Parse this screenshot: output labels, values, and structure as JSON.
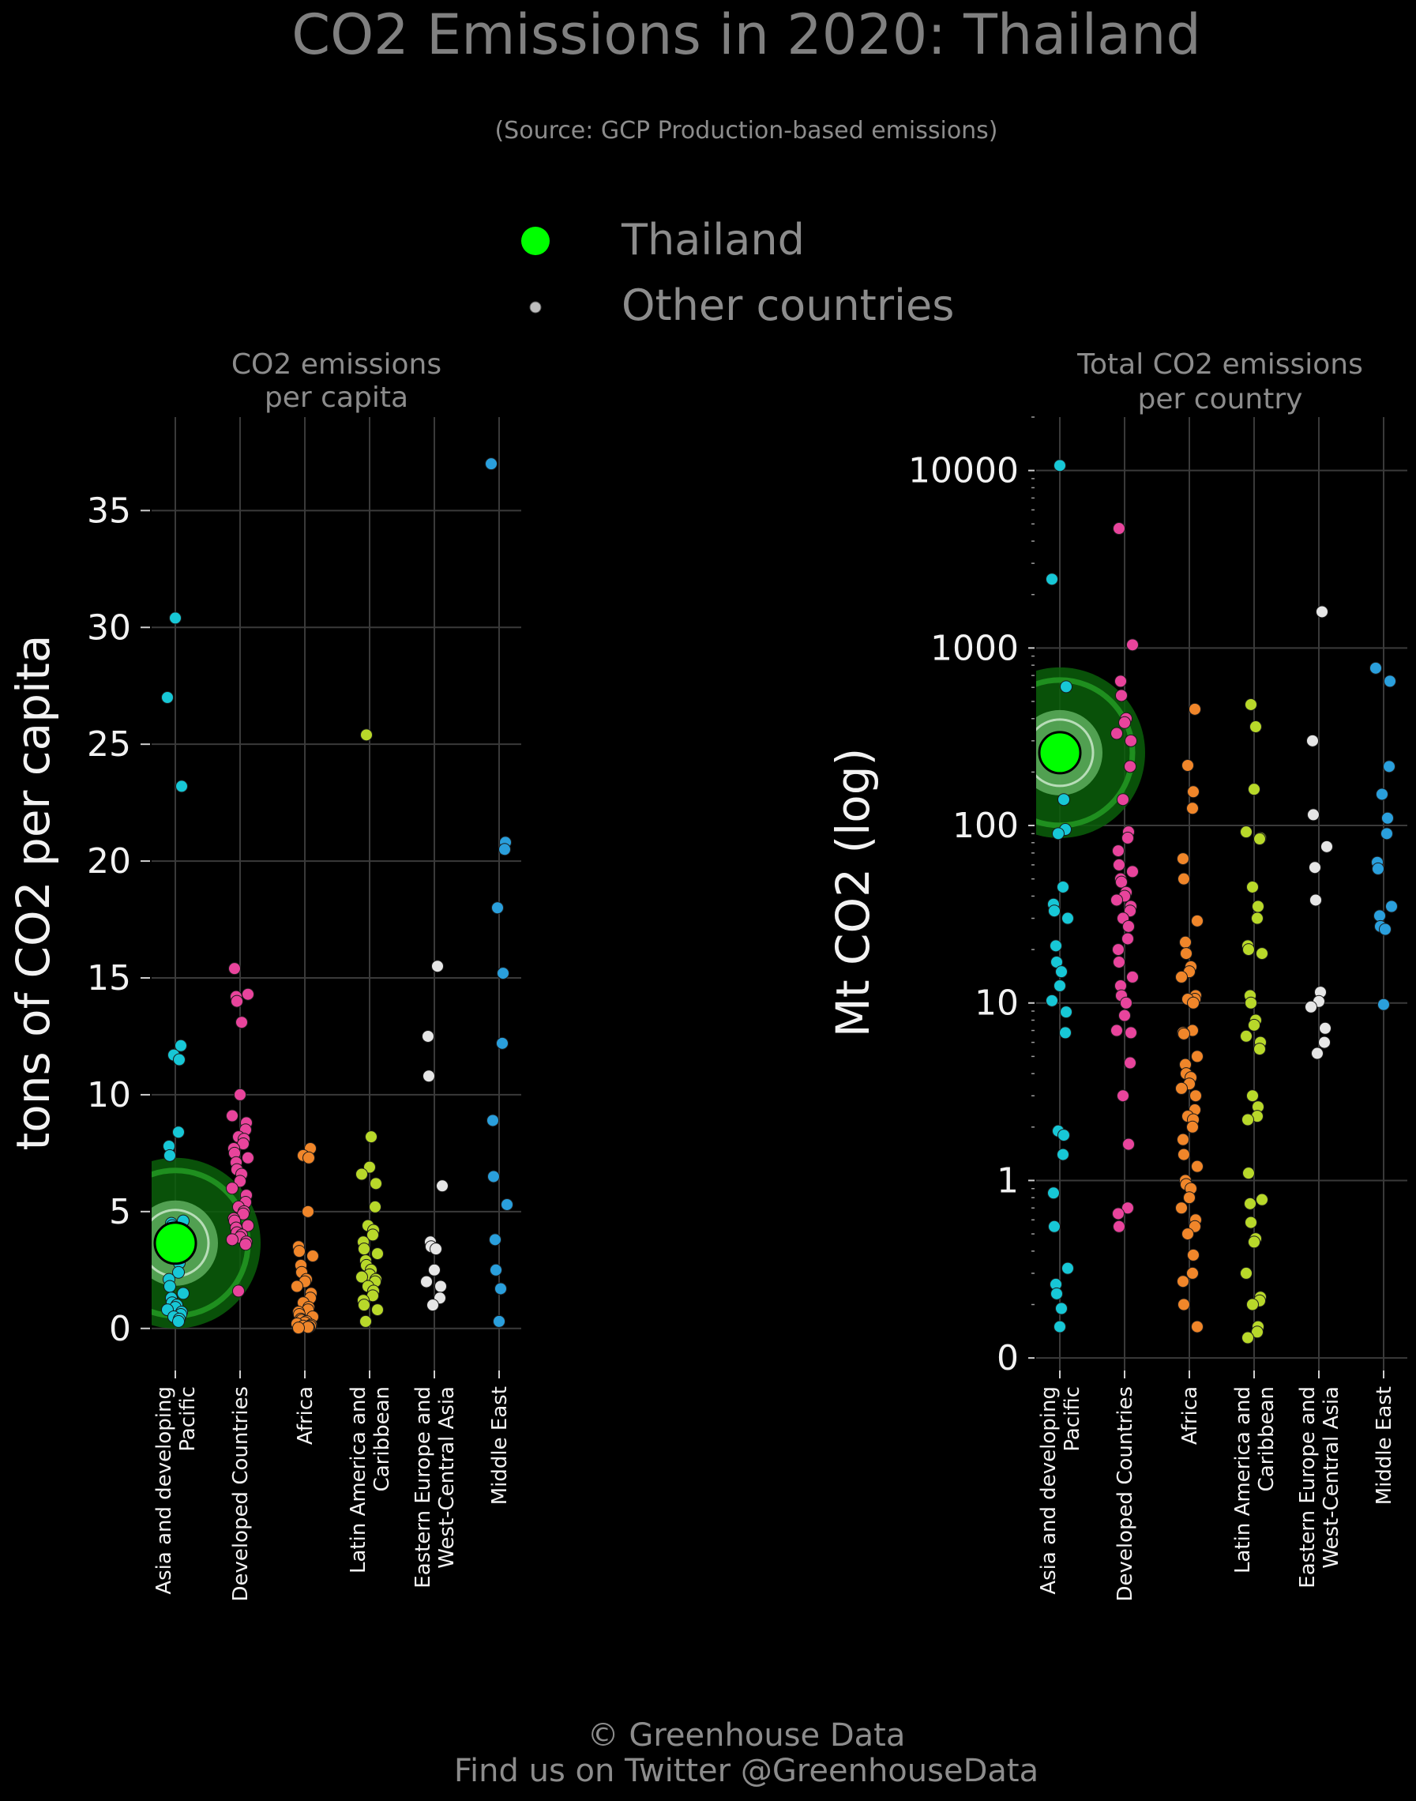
{
  "figure": {
    "title": "CO2 Emissions in 2020: Thailand",
    "subtitle": "(Source: GCP Production-based emissions)",
    "footer_line1": "© Greenhouse Data",
    "footer_line2": "Find us on Twitter @GreenhouseData"
  },
  "legend": [
    {
      "label": "Thailand",
      "color": "#00ff00"
    },
    {
      "label": "Other countries",
      "color": "#cfcfcf"
    }
  ],
  "colors": {
    "Asia and developing Pacific": "#17c7d6",
    "Developed Countries": "#e8449c",
    "Africa": "#f0862a",
    "Latin America and Caribbean": "#b8d82a",
    "Eastern Europe and West-Central Asia": "#e6e6e6",
    "Middle East": "#2a9fdc",
    "highlight": "#00ff00"
  },
  "chart_data": [
    {
      "type": "scatter",
      "title": "CO2 emissions\nper capita",
      "ylabel": "tons of CO2 per capita",
      "scale": "linear",
      "ylim": [
        -1.8,
        39
      ],
      "yticks": [
        0,
        5,
        10,
        15,
        20,
        25,
        30,
        35
      ],
      "ytick_labels": [
        "0",
        "5",
        "10",
        "15",
        "20",
        "25",
        "30",
        "35"
      ],
      "grid": true,
      "categories": [
        "Asia and developing\nPacific",
        "Developed Countries",
        "Africa",
        "Latin America and\nCaribbean",
        "Eastern Europe and\nWest-Central Asia",
        "Middle East"
      ],
      "series": [
        {
          "values": [
            30.4,
            27.0,
            23.2,
            12.1,
            11.7,
            11.5,
            8.4,
            7.8,
            7.4,
            4.6,
            4.5,
            4.4,
            4.2,
            3.9,
            3.7,
            3.5,
            3.2,
            3.0,
            2.8,
            2.4,
            2.1,
            1.8,
            1.5,
            1.3,
            1.1,
            1.0,
            0.9,
            0.8,
            0.7,
            0.6,
            0.5,
            0.4,
            0.3
          ]
        },
        {
          "values": [
            15.4,
            14.3,
            14.2,
            14.0,
            13.1,
            10.0,
            9.1,
            8.8,
            8.5,
            8.2,
            8.1,
            7.9,
            7.7,
            7.5,
            7.3,
            7.1,
            6.8,
            6.6,
            6.3,
            6.0,
            5.7,
            5.4,
            5.2,
            5.0,
            4.9,
            4.7,
            4.6,
            4.4,
            4.3,
            4.1,
            4.0,
            3.9,
            3.8,
            3.7,
            3.6,
            1.6
          ]
        },
        {
          "values": [
            7.7,
            7.4,
            7.3,
            5.0,
            3.5,
            3.3,
            3.1,
            2.7,
            2.4,
            2.1,
            2.0,
            1.8,
            1.5,
            1.3,
            1.1,
            0.9,
            0.8,
            0.7,
            0.6,
            0.5,
            0.4,
            0.35,
            0.3,
            0.25,
            0.2,
            0.15,
            0.1,
            0.1,
            0.05,
            0.05,
            0.02
          ]
        },
        {
          "values": [
            25.4,
            8.2,
            6.9,
            6.6,
            6.2,
            5.2,
            4.4,
            4.2,
            4.0,
            3.7,
            3.4,
            3.2,
            2.9,
            2.7,
            2.5,
            2.3,
            2.2,
            2.1,
            2.0,
            1.8,
            1.6,
            1.4,
            1.2,
            1.0,
            0.8,
            0.3
          ]
        },
        {
          "values": [
            15.5,
            12.5,
            10.8,
            6.1,
            3.7,
            3.5,
            3.4,
            2.5,
            2.0,
            1.8,
            1.3,
            1.0
          ]
        },
        {
          "values": [
            37.0,
            20.8,
            20.5,
            18.0,
            15.2,
            12.2,
            8.9,
            6.5,
            5.3,
            3.8,
            2.5,
            1.7,
            0.3
          ]
        }
      ],
      "highlight": {
        "name": "Thailand",
        "category_index": 0,
        "value": 3.65
      }
    },
    {
      "type": "scatter",
      "title": "Total CO2 emissions\nper country",
      "ylabel": "Mt CO2 (log)",
      "scale": "log",
      "ylim": [
        0.085,
        20000
      ],
      "yticks": [
        0.1,
        1,
        10,
        100,
        1000,
        10000
      ],
      "ytick_labels": [
        "0",
        "1",
        "10",
        "100",
        "1000",
        "10000"
      ],
      "grid": true,
      "categories": [
        "Asia and developing\nPacific",
        "Developed Countries",
        "Africa",
        "Latin America and\nCaribbean",
        "Eastern Europe and\nWest-Central Asia",
        "Middle East"
      ],
      "series": [
        {
          "values": [
            10668,
            2442,
            605,
            95,
            90,
            140,
            45,
            36,
            33,
            30,
            21,
            17,
            15,
            12.5,
            10.3,
            8.9,
            6.8,
            1.9,
            1.8,
            1.4,
            0.85,
            0.55,
            0.32,
            0.26,
            0.23,
            0.19,
            0.15
          ]
        },
        {
          "values": [
            4713,
            1042,
            650,
            540,
            400,
            380,
            330,
            300,
            215,
            140,
            92,
            85,
            72,
            60,
            55,
            50,
            48,
            42,
            40,
            38,
            35,
            33,
            30,
            27,
            23,
            20,
            17,
            14,
            12.5,
            11,
            10,
            8.5,
            7.0,
            6.8,
            4.6,
            3.0,
            1.6,
            0.7,
            0.65,
            0.55
          ]
        },
        {
          "values": [
            452,
            218,
            155,
            125,
            65,
            50,
            29,
            22,
            19,
            16,
            15,
            14,
            11,
            10.5,
            10.5,
            10,
            7,
            6.8,
            6.7,
            5,
            4.5,
            4,
            3.8,
            3.5,
            3.3,
            3,
            2.5,
            2.3,
            2.2,
            2,
            1.7,
            1.4,
            1.2,
            1.0,
            0.95,
            0.9,
            0.8,
            0.7,
            0.6,
            0.55,
            0.5,
            0.38,
            0.3,
            0.27,
            0.2,
            0.15
          ]
        },
        {
          "values": [
            480,
            360,
            160,
            92,
            85,
            84,
            45,
            35,
            30,
            21,
            20,
            19,
            11,
            10,
            8,
            7.5,
            6.5,
            6,
            5.5,
            3,
            2.6,
            2.3,
            2.2,
            1.1,
            0.78,
            0.74,
            0.58,
            0.47,
            0.45,
            0.3,
            0.22,
            0.21,
            0.2,
            0.15,
            0.14,
            0.13
          ]
        },
        {
          "values": [
            1600,
            300,
            115,
            76,
            58,
            38,
            11.5,
            10.2,
            9.5,
            7.2,
            6.0,
            5.2
          ]
        },
        {
          "values": [
            770,
            650,
            215,
            150,
            110,
            90,
            62,
            57,
            35,
            31,
            27,
            26,
            9.8
          ]
        }
      ],
      "highlight": {
        "name": "Thailand",
        "category_index": 0,
        "value": 257
      }
    }
  ]
}
